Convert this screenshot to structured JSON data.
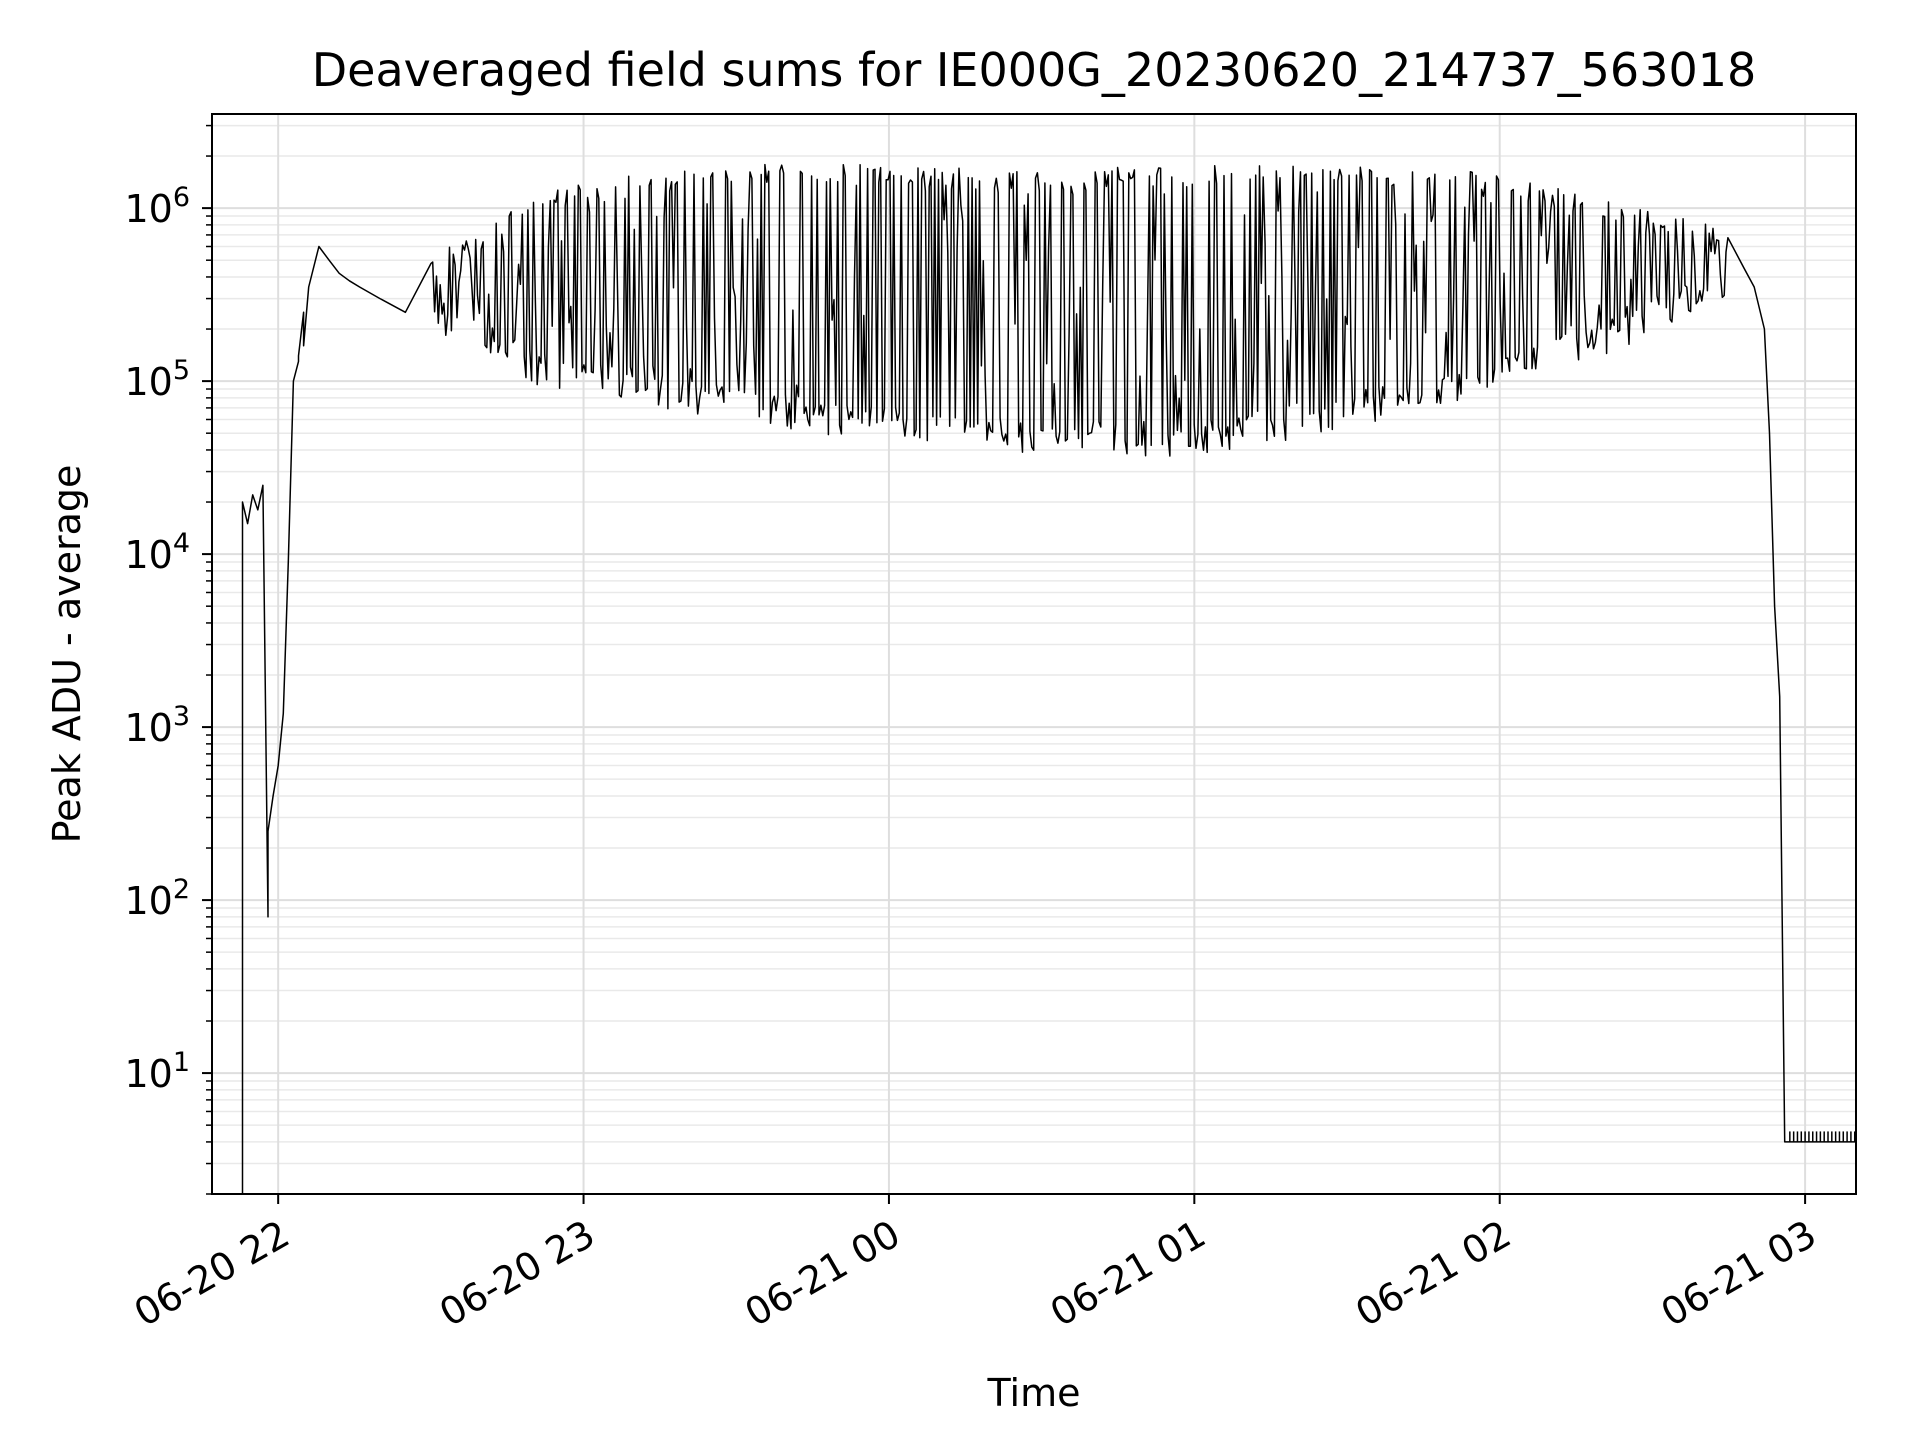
{
  "chart_data": {
    "type": "line",
    "title": "Deaveraged field sums for IE000G_20230620_214737_563018",
    "xlabel": "Time",
    "ylabel": "Peak ADU - average",
    "y_scale": "log",
    "ylim": [
      2,
      3500000
    ],
    "xlim": [
      "2023-06-20 21:47",
      "2023-06-21 03:10"
    ],
    "x_ticks": [
      {
        "value": "2023-06-20 22:00",
        "label": "06-20 22"
      },
      {
        "value": "2023-06-20 23:00",
        "label": "06-20 23"
      },
      {
        "value": "2023-06-21 00:00",
        "label": "06-21 00"
      },
      {
        "value": "2023-06-21 01:00",
        "label": "06-21 01"
      },
      {
        "value": "2023-06-21 02:00",
        "label": "06-21 02"
      },
      {
        "value": "2023-06-21 03:00",
        "label": "06-21 03"
      }
    ],
    "y_ticks": [
      {
        "value": 10,
        "base": "10",
        "exp": "1"
      },
      {
        "value": 100,
        "base": "10",
        "exp": "2"
      },
      {
        "value": 1000,
        "base": "10",
        "exp": "3"
      },
      {
        "value": 10000,
        "base": "10",
        "exp": "4"
      },
      {
        "value": 100000,
        "base": "10",
        "exp": "5"
      },
      {
        "value": 1000000,
        "base": "10",
        "exp": "6"
      }
    ],
    "grid": true,
    "line_color": "#000000",
    "series": [
      {
        "x": [
          "2023-06-20 21:53",
          "2023-06-20 21:53",
          "2023-06-20 21:54",
          "2023-06-20 21:55",
          "2023-06-20 21:56",
          "2023-06-20 21:57",
          "2023-06-20 21:58",
          "2023-06-20 21:58",
          "2023-06-20 21:58",
          "2023-06-20 21:59",
          "2023-06-20 22:00",
          "2023-06-20 22:01",
          "2023-06-20 22:02",
          "2023-06-20 22:03",
          "2023-06-20 22:04",
          "2023-06-20 22:04",
          "2023-06-20 22:05",
          "2023-06-20 22:05",
          "2023-06-20 22:06",
          "2023-06-20 22:08",
          "2023-06-20 22:10",
          "2023-06-20 22:12",
          "2023-06-20 22:14",
          "2023-06-20 22:16",
          "2023-06-20 22:20",
          "2023-06-20 22:25",
          "2023-06-20 22:30",
          "2023-06-20 22:40",
          "2023-06-20 22:50",
          "2023-06-20 23:00",
          "2023-06-20 23:15",
          "2023-06-20 23:30",
          "2023-06-20 23:45",
          "2023-06-21 00:00",
          "2023-06-21 00:15",
          "2023-06-21 00:30",
          "2023-06-21 00:45",
          "2023-06-21 01:00",
          "2023-06-21 01:15",
          "2023-06-21 01:30",
          "2023-06-21 01:45",
          "2023-06-21 02:00",
          "2023-06-21 02:15",
          "2023-06-21 02:30",
          "2023-06-21 02:40",
          "2023-06-21 02:45",
          "2023-06-21 02:48",
          "2023-06-21 02:50",
          "2023-06-21 02:52",
          "2023-06-21 02:53",
          "2023-06-21 02:54",
          "2023-06-21 02:55",
          "2023-06-21 02:56",
          "2023-06-21 03:00",
          "2023-06-21 03:05",
          "2023-06-21 03:10"
        ],
        "y": [
          2,
          20000,
          15000,
          22000,
          18000,
          25000,
          80,
          90,
          250,
          400,
          600,
          1200,
          9000,
          100000,
          130000,
          140000,
          250000,
          160000,
          350000,
          600000,
          500000,
          420000,
          380000,
          350000,
          300000,
          250000,
          200000,
          150000,
          120000,
          100000,
          80000,
          70000,
          60000,
          55000,
          50000,
          50000,
          52000,
          55000,
          65000,
          80000,
          100000,
          150000,
          200000,
          300000,
          400000,
          500000,
          450000,
          350000,
          200000,
          50000,
          5000,
          1500,
          4,
          4,
          4,
          4
        ],
        "lower_envelope": [
          [
            "2023-06-20 22:30",
            250000
          ],
          [
            "2023-06-20 22:50",
            120000
          ],
          [
            "2023-06-20 23:00",
            100000
          ],
          [
            "2023-06-20 23:30",
            70000
          ],
          [
            "2023-06-21 00:00",
            55000
          ],
          [
            "2023-06-21 00:30",
            45000
          ],
          [
            "2023-06-21 01:00",
            45000
          ],
          [
            "2023-06-21 01:30",
            65000
          ],
          [
            "2023-06-21 02:00",
            110000
          ],
          [
            "2023-06-21 02:30",
            220000
          ],
          [
            "2023-06-21 02:45",
            400000
          ]
        ],
        "upper_envelope": [
          [
            "2023-06-20 22:30",
            500000
          ],
          [
            "2023-06-20 22:50",
            1200000
          ],
          [
            "2023-06-20 23:00",
            1400000
          ],
          [
            "2023-06-20 23:30",
            1700000
          ],
          [
            "2023-06-21 00:00",
            1700000
          ],
          [
            "2023-06-21 00:30",
            1600000
          ],
          [
            "2023-06-21 01:00",
            1700000
          ],
          [
            "2023-06-21 01:30",
            1800000
          ],
          [
            "2023-06-21 02:00",
            1500000
          ],
          [
            "2023-06-21 02:30",
            900000
          ],
          [
            "2023-06-21 02:45",
            800000
          ]
        ]
      }
    ]
  }
}
